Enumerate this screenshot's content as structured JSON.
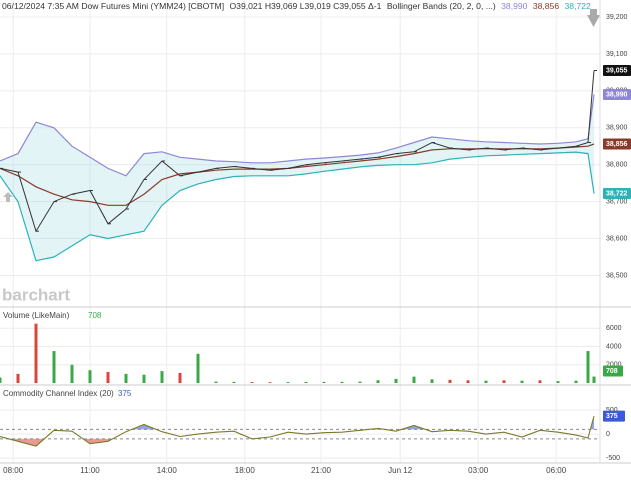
{
  "chart_data": [
    {
      "type": "line",
      "title": "06/12/2024 7:35 AM Dow Futures Mini (YMM24) [CBOTM]",
      "ohlc": "O39,021 H39,069 L39,019 C39,055 Δ-1",
      "study": "Bollinger Bands (20, 2, 0, ...)",
      "watermark": "barchart",
      "x": [
        0,
        3,
        6,
        9,
        12,
        15,
        18,
        21,
        24,
        27,
        30,
        33,
        36,
        39,
        42,
        45,
        48,
        51,
        54,
        57,
        60,
        63,
        66,
        69,
        72,
        75,
        78,
        81,
        84,
        87,
        90,
        93,
        96,
        98,
        99
      ],
      "xlim": [
        0,
        100
      ],
      "ylim": [
        38420,
        39246
      ],
      "yticks": [
        {
          "value": 38500,
          "label": "38,500"
        },
        {
          "value": 38600,
          "label": "38,600"
        },
        {
          "value": 38700,
          "label": "38,700"
        },
        {
          "value": 38800,
          "label": "38,800"
        },
        {
          "value": 38900,
          "label": "38,900"
        },
        {
          "value": 39000,
          "label": "39,000"
        },
        {
          "value": 39100,
          "label": "39,100"
        },
        {
          "value": 39200,
          "label": "39,200"
        }
      ],
      "close": {
        "color": "#333333",
        "last_label": "39,055",
        "values": [
          38790,
          38780,
          38620,
          38700,
          38720,
          38730,
          38640,
          38680,
          38760,
          38810,
          38770,
          38780,
          38790,
          38795,
          38790,
          38785,
          38790,
          38800,
          38805,
          38810,
          38815,
          38820,
          38830,
          38835,
          38860,
          38845,
          38840,
          38845,
          38840,
          38845,
          38840,
          38845,
          38850,
          38860,
          39055
        ]
      },
      "bands": [
        {
          "color": "#8f86d6",
          "last_label": "38,990",
          "values": [
            38810,
            38830,
            38915,
            38900,
            38850,
            38820,
            38790,
            38770,
            38830,
            38835,
            38820,
            38815,
            38810,
            38808,
            38805,
            38805,
            38810,
            38815,
            38818,
            38822,
            38826,
            38832,
            38845,
            38860,
            38875,
            38870,
            38865,
            38862,
            38860,
            38858,
            38856,
            38858,
            38862,
            38870,
            38990
          ]
        },
        {
          "color": "#8b3a2a",
          "last_label": "38,856",
          "values": [
            38790,
            38770,
            38740,
            38720,
            38705,
            38700,
            38690,
            38690,
            38720,
            38760,
            38775,
            38780,
            38785,
            38788,
            38788,
            38788,
            38790,
            38795,
            38800,
            38805,
            38810,
            38815,
            38822,
            38830,
            38840,
            38843,
            38843,
            38843,
            38843,
            38843,
            38843,
            38845,
            38848,
            38850,
            38856
          ]
        },
        {
          "color": "#2bb3b8",
          "last_label": "38,722",
          "values": [
            38770,
            38700,
            38540,
            38550,
            38580,
            38610,
            38600,
            38610,
            38620,
            38690,
            38730,
            38748,
            38760,
            38768,
            38770,
            38770,
            38770,
            38775,
            38782,
            38788,
            38794,
            38798,
            38800,
            38800,
            38805,
            38815,
            38820,
            38824,
            38826,
            38828,
            38830,
            38832,
            38834,
            38830,
            38722
          ]
        }
      ]
    },
    {
      "type": "bar",
      "title": "Volume (LikeMain)",
      "last_label": "708",
      "up_color": "#3aa845",
      "down_color": "#d9453b",
      "values": [
        600,
        1000,
        6500,
        3500,
        2000,
        1400,
        1200,
        1000,
        900,
        1300,
        1100,
        3200,
        150,
        120,
        100,
        90,
        100,
        110,
        120,
        130,
        150,
        300,
        450,
        700,
        400,
        350,
        300,
        250,
        300,
        250,
        300,
        200,
        250,
        3500,
        708
      ],
      "ylim": [
        0,
        8000
      ],
      "yticks": [
        2000,
        4000,
        6000
      ]
    },
    {
      "type": "line",
      "title": "Commodity Channel Index (20)",
      "last_label": "375",
      "color": "#7a7a2a",
      "high_color": "#3b5bd6",
      "low_color": "#d9453b",
      "values": [
        -50,
        -150,
        -250,
        80,
        60,
        -200,
        -150,
        50,
        200,
        50,
        -50,
        0,
        40,
        60,
        -100,
        -60,
        40,
        0,
        30,
        40,
        80,
        120,
        60,
        180,
        50,
        80,
        60,
        0,
        40,
        -60,
        80,
        40,
        -20,
        -80,
        375
      ],
      "levels": [
        100,
        -100
      ],
      "ylim": [
        -580,
        960
      ],
      "yticks": [
        -500,
        0,
        500
      ],
      "xticks": [
        {
          "value": 2.2,
          "label": "08:00"
        },
        {
          "value": 15,
          "label": "11:00"
        },
        {
          "value": 27.8,
          "label": "14:00"
        },
        {
          "value": 40.8,
          "label": "18:00"
        },
        {
          "value": 53.5,
          "label": "21:00"
        },
        {
          "value": 66.7,
          "label": "Jun 12"
        },
        {
          "value": 79.7,
          "label": "03:00"
        },
        {
          "value": 92.7,
          "label": "06:00"
        }
      ]
    }
  ]
}
